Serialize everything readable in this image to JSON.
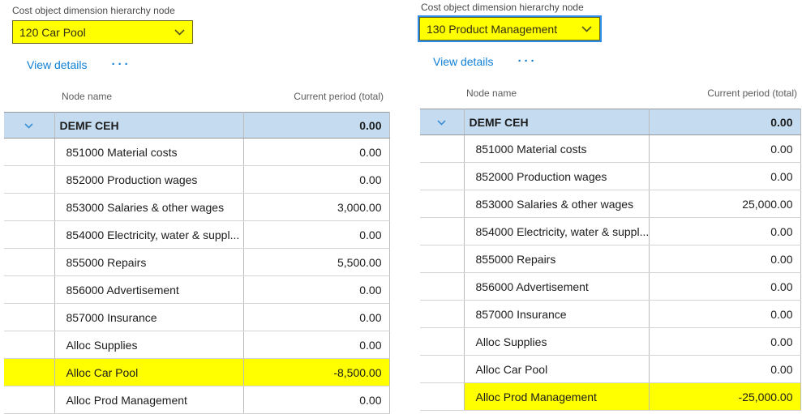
{
  "colors": {
    "highlight_yellow": "#ffff00",
    "group_row_bg": "#c5dcf0",
    "link_blue": "#1080d6",
    "focus_border_blue": "#2e8ce6",
    "group_chevron_blue": "#3a8fd6",
    "dropdown_border_olive": "#68681f"
  },
  "icons": {
    "dropdown_chevron": "chevron-down-icon",
    "group_row_chevron": "chevron-down-icon",
    "more_options": "ellipsis-icon"
  },
  "panels": [
    {
      "field_label": "Cost object dimension hierarchy node",
      "dropdown": {
        "value": "120 Car Pool"
      },
      "actions": {
        "view_details": "View details",
        "more": "···"
      },
      "table": {
        "columns": {
          "name": "Node name",
          "value": "Current period (total)"
        },
        "group_row": {
          "name": "DEMF CEH",
          "value": "0.00"
        },
        "rows": [
          {
            "name": "851000 Material costs",
            "value": "0.00"
          },
          {
            "name": "852000 Production wages",
            "value": "0.00"
          },
          {
            "name": "853000 Salaries & other wages",
            "value": "3,000.00"
          },
          {
            "name": "854000 Electricity, water & suppl...",
            "value": "0.00"
          },
          {
            "name": "855000 Repairs",
            "value": "5,500.00"
          },
          {
            "name": "856000 Advertisement",
            "value": "0.00"
          },
          {
            "name": "857000 Insurance",
            "value": "0.00"
          },
          {
            "name": "Alloc Supplies",
            "value": "0.00"
          },
          {
            "name": "Alloc Car Pool",
            "value": "-8,500.00",
            "highlight": true,
            "highlight_gutter": true
          },
          {
            "name": "Alloc Prod Management",
            "value": "0.00"
          }
        ]
      }
    },
    {
      "field_label": "Cost object dimension hierarchy node",
      "dropdown": {
        "value": "130 Product Management"
      },
      "actions": {
        "view_details": "View details",
        "more": "···"
      },
      "table": {
        "columns": {
          "name": "Node name",
          "value": "Current period (total)"
        },
        "group_row": {
          "name": "DEMF CEH",
          "value": "0.00"
        },
        "rows": [
          {
            "name": "851000 Material costs",
            "value": "0.00"
          },
          {
            "name": "852000 Production wages",
            "value": "0.00"
          },
          {
            "name": "853000 Salaries & other wages",
            "value": "25,000.00"
          },
          {
            "name": "854000 Electricity, water & suppl...",
            "value": "0.00"
          },
          {
            "name": "855000 Repairs",
            "value": "0.00"
          },
          {
            "name": "856000 Advertisement",
            "value": "0.00"
          },
          {
            "name": "857000 Insurance",
            "value": "0.00"
          },
          {
            "name": "Alloc Supplies",
            "value": "0.00"
          },
          {
            "name": "Alloc Car Pool",
            "value": "0.00"
          },
          {
            "name": "Alloc Prod Management",
            "value": "-25,000.00",
            "highlight": true,
            "highlight_gutter": false
          }
        ]
      }
    }
  ]
}
